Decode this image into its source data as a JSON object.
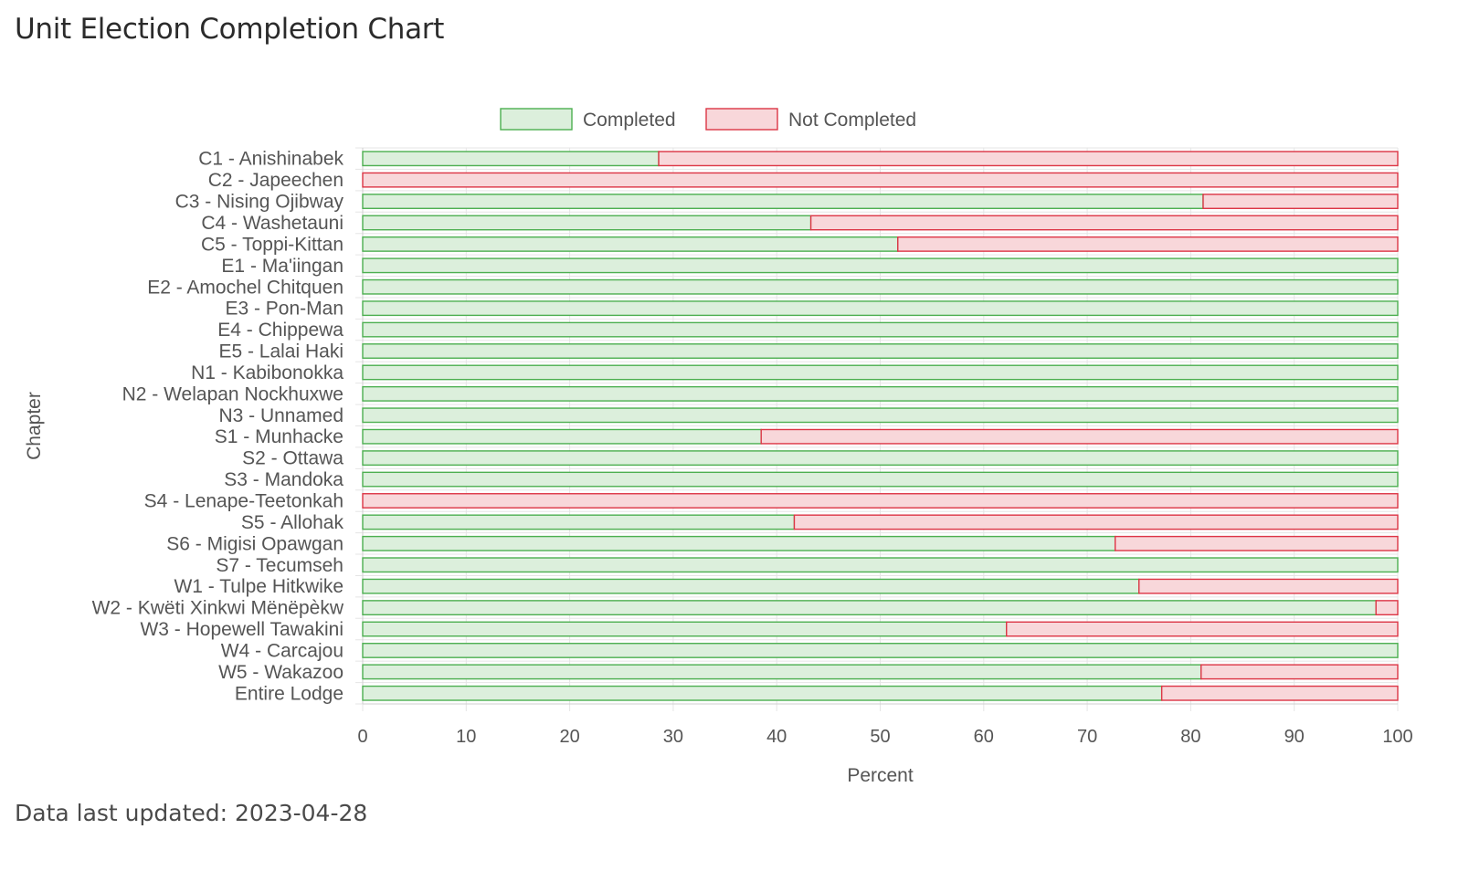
{
  "page": {
    "title": "Unit Election Completion Chart",
    "footer_label": "Data last updated: 2023-04-28"
  },
  "colors": {
    "completed_fill": "#dcefdc",
    "completed_stroke": "#4caf50",
    "not_completed_fill": "#f8d7da",
    "not_completed_stroke": "#dc3545",
    "grid": "#e5e5e5",
    "axis_text": "#555555"
  },
  "chart_data": {
    "type": "bar",
    "orientation": "horizontal",
    "stacked": true,
    "title": "",
    "xlabel": "Percent",
    "ylabel": "Chapter",
    "xlim": [
      0,
      100
    ],
    "xticks": [
      0,
      10,
      20,
      30,
      40,
      50,
      60,
      70,
      80,
      90,
      100
    ],
    "grid": true,
    "legend_position": "top",
    "categories": [
      "C1 - Anishinabek",
      "C2 - Japeechen",
      "C3 - Nising Ojibway",
      "C4 - Washetauni",
      "C5 - Toppi-Kittan",
      "E1 - Ma'iingan",
      "E2 - Amochel Chitquen",
      "E3 - Pon-Man",
      "E4 - Chippewa",
      "E5 - Lalai Haki",
      "N1 - Kabibonokka",
      "N2 - Welapan Nockhuxwe",
      "N3 - Unnamed",
      "S1 - Munhacke",
      "S2 - Ottawa",
      "S3 - Mandoka",
      "S4 - Lenape-Teetonkah",
      "S5 - Allohak",
      "S6 - Migisi Opawgan",
      "S7 - Tecumseh",
      "W1 - Tulpe Hitkwike",
      "W2 - Kwëti Xinkwi Mënëpèkw",
      "W3 - Hopewell Tawakini",
      "W4 - Carcajou",
      "W5 - Wakazoo",
      "Entire Lodge"
    ],
    "series": [
      {
        "name": "Completed",
        "values": [
          28.6,
          0,
          81.2,
          43.3,
          51.7,
          100,
          100,
          100,
          100,
          100,
          100,
          100,
          100,
          38.5,
          100,
          100,
          0,
          41.7,
          72.7,
          100,
          75,
          97.9,
          62.2,
          100,
          81,
          77.2
        ]
      },
      {
        "name": "Not Completed",
        "values": [
          71.4,
          100,
          18.8,
          56.7,
          48.3,
          0,
          0,
          0,
          0,
          0,
          0,
          0,
          0,
          61.5,
          0,
          0,
          100,
          58.3,
          27.3,
          0,
          25,
          2.1,
          37.8,
          0,
          19,
          22.8
        ]
      }
    ]
  }
}
